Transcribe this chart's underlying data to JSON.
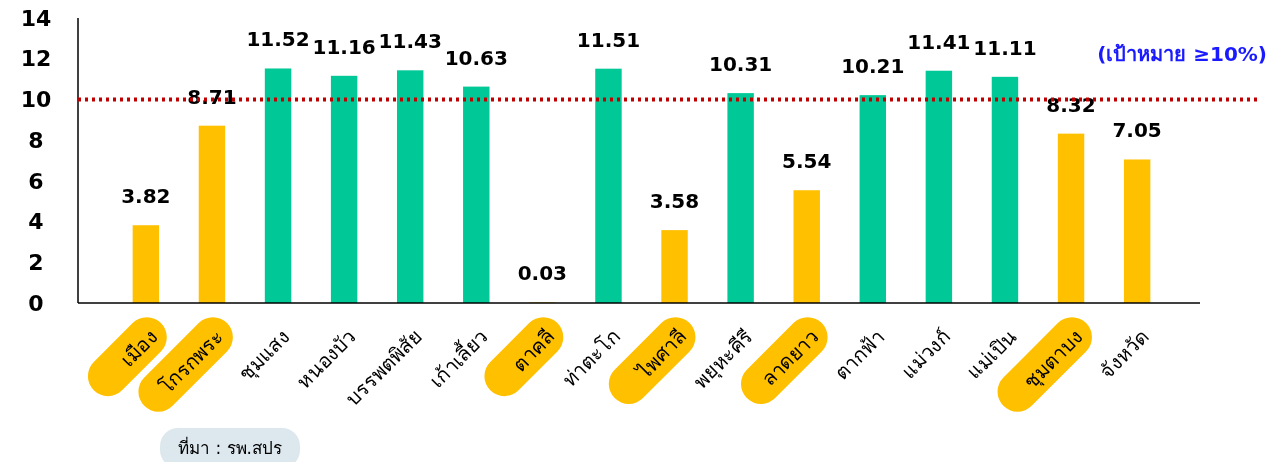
{
  "chart_data": {
    "type": "bar",
    "categories": [
      "เมือง",
      "โกรกพระ",
      "ชุมแสง",
      "หนองบัว",
      "บรรพตพิสัย",
      "เก้าเลี้ยว",
      "ตาคลี",
      "ท่าตะโก",
      "ไพศาลี",
      "พยุหะคีรี",
      "ลาดยาว",
      "ตากฟ้า",
      "แม่วงก์",
      "แม่เปิน",
      "ชุมตาบง",
      "จังหวัด"
    ],
    "values": [
      3.82,
      8.71,
      11.52,
      11.16,
      11.43,
      10.63,
      0.03,
      11.51,
      3.58,
      10.31,
      5.54,
      10.21,
      11.41,
      11.11,
      8.32,
      7.05
    ],
    "colors": [
      "#ffc000",
      "#ffc000",
      "#00c896",
      "#00c896",
      "#00c896",
      "#00c896",
      "#ffc000",
      "#00c896",
      "#ffc000",
      "#00c896",
      "#ffc000",
      "#00c896",
      "#00c896",
      "#00c896",
      "#ffc000",
      "#ffc000"
    ],
    "ylim": [
      0,
      14
    ],
    "yticks": [
      0,
      2,
      4,
      6,
      8,
      10,
      12,
      14
    ],
    "grid": false,
    "data_labels": true,
    "ref_lines": [
      {
        "axis": "y",
        "value": 10,
        "label": "(เป้าหมาย ≥10%)",
        "color": "#c00000",
        "line_style": "dotted"
      }
    ],
    "annotations": [
      "ที่มา : รพ.สปร"
    ]
  }
}
